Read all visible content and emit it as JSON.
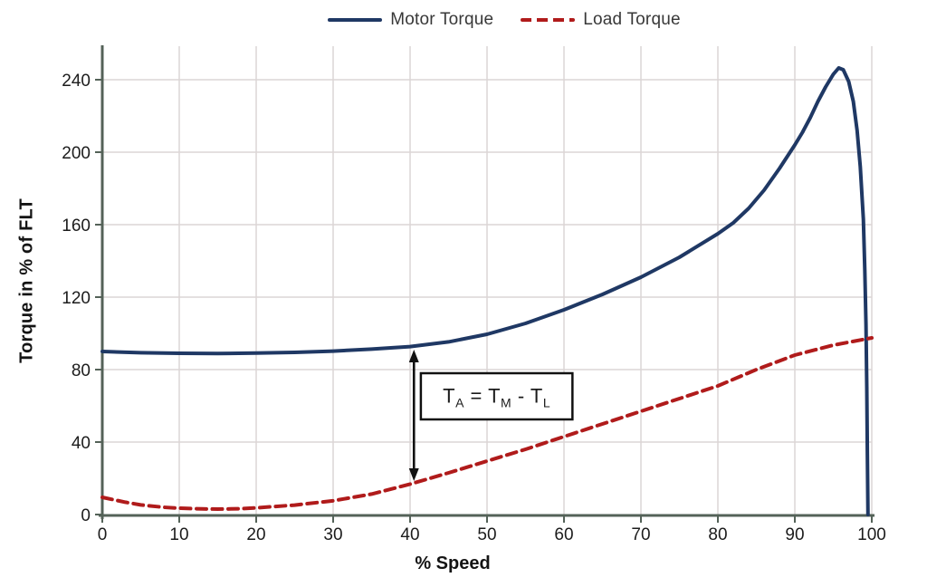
{
  "legend": {
    "items": [
      {
        "label": "Motor Torque",
        "color": "#1f3864",
        "line_style": "solid"
      },
      {
        "label": "Load Torque",
        "color": "#b01b1b",
        "line_style": "dashed"
      }
    ]
  },
  "axes": {
    "x_title": "% Speed",
    "y_title": "Torque in % of FLT"
  },
  "chart_data": {
    "type": "line",
    "title": "",
    "xlabel": "% Speed",
    "ylabel": "Torque in % of FLT",
    "xlim": [
      0,
      100
    ],
    "ylim": [
      0,
      256
    ],
    "xticks": [
      0,
      10,
      20,
      30,
      40,
      50,
      60,
      70,
      80,
      90,
      100
    ],
    "yticks": [
      0,
      40,
      80,
      120,
      160,
      200,
      240
    ],
    "grid": true,
    "legend_position": "top-center",
    "grid_color": "#dcd6d6",
    "axis_color": "#546258",
    "tick_label_color": "#1c1c1c",
    "series": [
      {
        "name": "Motor Torque",
        "color": "#1f3864",
        "style": "solid",
        "width": 4,
        "points": [
          [
            0,
            90
          ],
          [
            5,
            89.3
          ],
          [
            10,
            89
          ],
          [
            15,
            88.9
          ],
          [
            20,
            89.1
          ],
          [
            25,
            89.5
          ],
          [
            30,
            90.2
          ],
          [
            35,
            91.3
          ],
          [
            40,
            92.7
          ],
          [
            45,
            95.3
          ],
          [
            50,
            99.5
          ],
          [
            55,
            105.5
          ],
          [
            60,
            113
          ],
          [
            65,
            121.5
          ],
          [
            70,
            131
          ],
          [
            75,
            142
          ],
          [
            80,
            155
          ],
          [
            82,
            161
          ],
          [
            84,
            169
          ],
          [
            86,
            179
          ],
          [
            88,
            191
          ],
          [
            90,
            204
          ],
          [
            91,
            211
          ],
          [
            92,
            219
          ],
          [
            93,
            228
          ],
          [
            94,
            236
          ],
          [
            95,
            243
          ],
          [
            95.7,
            246.5
          ],
          [
            96.3,
            245.5
          ],
          [
            97,
            239
          ],
          [
            97.6,
            228
          ],
          [
            98.1,
            212
          ],
          [
            98.5,
            192
          ],
          [
            98.9,
            163
          ],
          [
            99.1,
            135
          ],
          [
            99.25,
            105
          ],
          [
            99.35,
            70
          ],
          [
            99.42,
            35
          ],
          [
            99.5,
            0
          ]
        ]
      },
      {
        "name": "Load Torque",
        "color": "#b01b1b",
        "style": "dashed",
        "width": 4,
        "points": [
          [
            0,
            9.5
          ],
          [
            3,
            6.8
          ],
          [
            5,
            5.3
          ],
          [
            8,
            4
          ],
          [
            10,
            3.5
          ],
          [
            13,
            3.1
          ],
          [
            15,
            3
          ],
          [
            18,
            3.2
          ],
          [
            20,
            3.7
          ],
          [
            25,
            5.2
          ],
          [
            30,
            7.6
          ],
          [
            35,
            11.3
          ],
          [
            40,
            16.8
          ],
          [
            45,
            23
          ],
          [
            50,
            29.5
          ],
          [
            55,
            36
          ],
          [
            60,
            43
          ],
          [
            65,
            50
          ],
          [
            70,
            57
          ],
          [
            75,
            64
          ],
          [
            80,
            71
          ],
          [
            85,
            80
          ],
          [
            90,
            88
          ],
          [
            95,
            93.5
          ],
          [
            100,
            97.5
          ]
        ]
      }
    ],
    "annotation": {
      "text": "TA = TM - TL",
      "parts": [
        {
          "t": "T"
        },
        {
          "sub": "A"
        },
        {
          "t": " = T"
        },
        {
          "sub": "M"
        },
        {
          "t": " - T"
        },
        {
          "sub": "L"
        }
      ],
      "box": {
        "x0": 41.4,
        "x1": 61.1,
        "y0": 52.5,
        "y1": 78
      },
      "arrow": {
        "x": 40.5,
        "y_from": 91,
        "y_to": 18.5
      }
    }
  }
}
